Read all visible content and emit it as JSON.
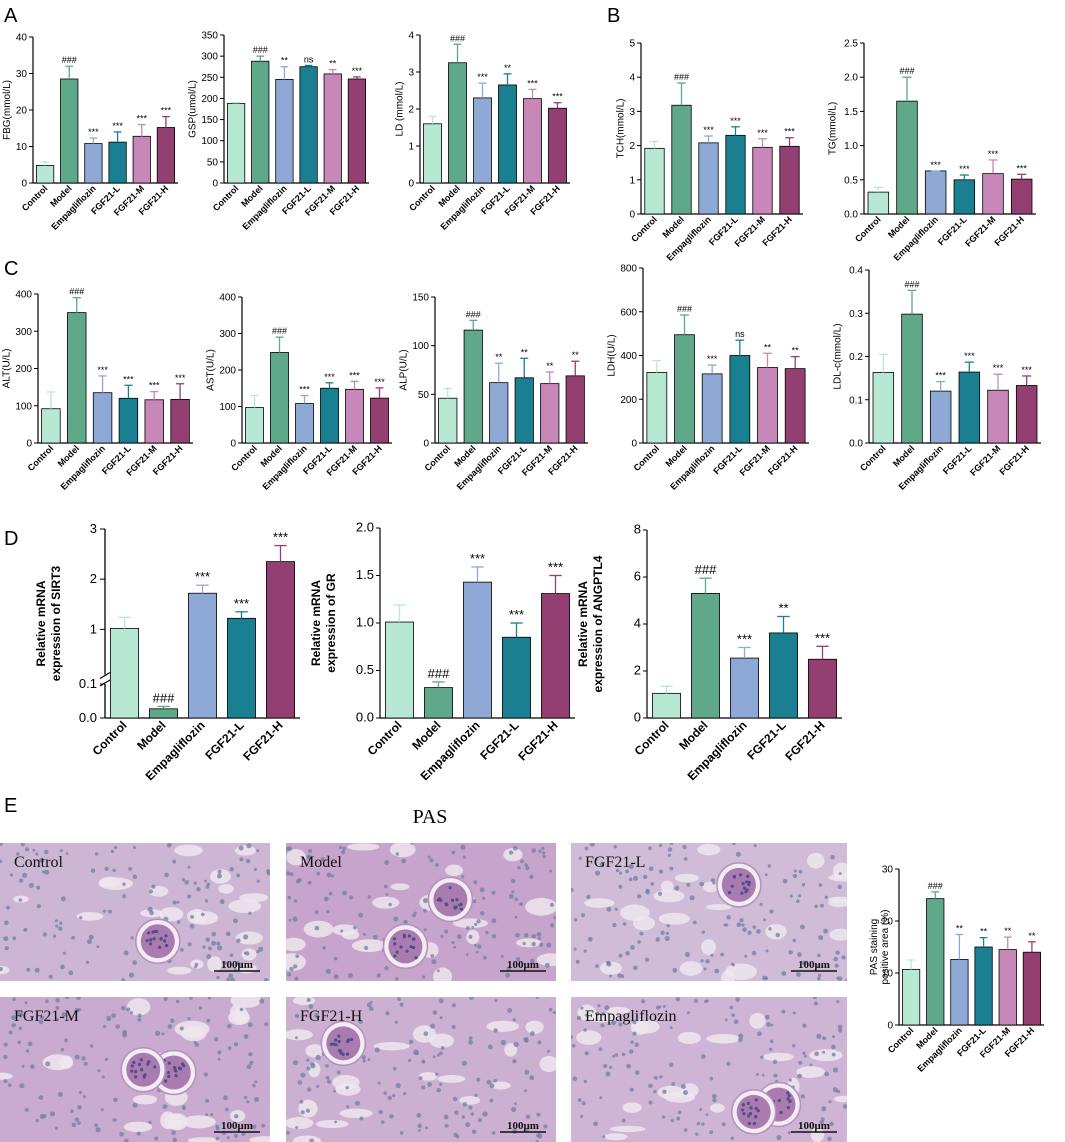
{
  "panel_labels": [
    "A",
    "B",
    "C",
    "D",
    "E"
  ],
  "colors": [
    "#b6e8d4",
    "#5fa889",
    "#8fa9d6",
    "#1b7f92",
    "#c887b9",
    "#943f72"
  ],
  "histology": {
    "title": "PAS",
    "scale_bar": "100μm",
    "images": [
      {
        "label": "Control",
        "tint": "#cdb6d3"
      },
      {
        "label": "Model",
        "tint": "#c7a4cb"
      },
      {
        "label": "FGF21-L",
        "tint": "#d1bcd8"
      },
      {
        "label": "FGF21-M",
        "tint": "#c8abcf"
      },
      {
        "label": "FGF21-H",
        "tint": "#cbb0d1"
      },
      {
        "label": "Empagliflozin",
        "tint": "#cfb5d5"
      }
    ]
  },
  "chart_data": [
    {
      "id": "FBG",
      "panel": "A",
      "type": "bar",
      "ylabel": "FBG(mmol/L)",
      "categories": [
        "Control",
        "Model",
        "Empagliflozin",
        "FGF21-L",
        "FGF21-M",
        "FGF21-H"
      ],
      "values": [
        4.8,
        28.5,
        10.8,
        11.2,
        12.8,
        15.2
      ],
      "errors": [
        1.0,
        3.5,
        1.5,
        2.8,
        3.2,
        3.0
      ],
      "sig": [
        "",
        "###",
        "***",
        "***",
        "***",
        "***"
      ],
      "ylim": [
        0,
        40
      ],
      "ticks": [
        0,
        10,
        20,
        30,
        40
      ]
    },
    {
      "id": "GSP",
      "panel": "A",
      "type": "bar",
      "ylabel": "GSP(umol/L)",
      "categories": [
        "Control",
        "Model",
        "Empagliflozin",
        "FGF21-L",
        "FGF21-M",
        "FGF21-H"
      ],
      "values": [
        188,
        288,
        245,
        275,
        258,
        246
      ],
      "errors": [
        2,
        12,
        30,
        3,
        10,
        5
      ],
      "sig": [
        "",
        "###",
        "**",
        "ns",
        "**",
        "***"
      ],
      "ylim": [
        0,
        350
      ],
      "ticks": [
        0,
        50,
        100,
        150,
        200,
        250,
        300,
        350
      ]
    },
    {
      "id": "LD",
      "panel": "A",
      "type": "bar",
      "ylabel": "LD (mmol/L)",
      "categories": [
        "Control",
        "Model",
        "Empagliflozin",
        "FGF21-L",
        "FGF21-M",
        "FGF21-H"
      ],
      "values": [
        1.6,
        3.25,
        2.3,
        2.65,
        2.28,
        2.02
      ],
      "errors": [
        0.2,
        0.5,
        0.4,
        0.3,
        0.25,
        0.15
      ],
      "sig": [
        "",
        "###",
        "***",
        "**",
        "***",
        "***"
      ],
      "ylim": [
        0,
        4
      ],
      "ticks": [
        0,
        1,
        2,
        3,
        4
      ]
    },
    {
      "id": "TCH",
      "panel": "B",
      "type": "bar",
      "ylabel": "TCH(mmol/L)",
      "categories": [
        "Control",
        "Model",
        "Empagliflozin",
        "FGF21-L",
        "FGF21-M",
        "FGF21-H"
      ],
      "values": [
        1.92,
        3.18,
        2.08,
        2.3,
        1.95,
        1.98
      ],
      "errors": [
        0.2,
        0.65,
        0.2,
        0.25,
        0.25,
        0.25
      ],
      "sig": [
        "",
        "###",
        "***",
        "***",
        "***",
        "***"
      ],
      "ylim": [
        0,
        5
      ],
      "ticks": [
        0,
        1,
        2,
        3,
        4,
        5
      ]
    },
    {
      "id": "TG",
      "panel": "B",
      "type": "bar",
      "ylabel": "TG(mmol/L)",
      "categories": [
        "Control",
        "Model",
        "Empagliflozin",
        "FGF21-L",
        "FGF21-M",
        "FGF21-H"
      ],
      "values": [
        0.32,
        1.65,
        0.63,
        0.5,
        0.59,
        0.51
      ],
      "errors": [
        0.07,
        0.35,
        0.0,
        0.07,
        0.2,
        0.07
      ],
      "sig": [
        "",
        "###",
        "***",
        "***",
        "***",
        "***"
      ],
      "ylim": [
        0,
        2.5
      ],
      "ticks": [
        0.0,
        0.5,
        1.0,
        1.5,
        2.0,
        2.5
      ]
    },
    {
      "id": "ALT",
      "panel": "C",
      "type": "bar",
      "ylabel": "ALT(U/L)",
      "categories": [
        "Control",
        "Model",
        "Empagliflozin",
        "FGF21-L",
        "FGF21-M",
        "FGF21-H"
      ],
      "values": [
        92,
        350,
        135,
        120,
        116,
        117
      ],
      "errors": [
        45,
        40,
        45,
        35,
        22,
        42
      ],
      "sig": [
        "",
        "###",
        "***",
        "***",
        "***",
        "***"
      ],
      "ylim": [
        0,
        400
      ],
      "ticks": [
        0,
        100,
        200,
        300,
        400
      ]
    },
    {
      "id": "AST",
      "panel": "C",
      "type": "bar",
      "ylabel": "AST(U/L)",
      "categories": [
        "Control",
        "Model",
        "Empagliflozin",
        "FGF21-L",
        "FGF21-M",
        "FGF21-H"
      ],
      "values": [
        97,
        248,
        108,
        150,
        147,
        123
      ],
      "errors": [
        33,
        42,
        22,
        15,
        22,
        28
      ],
      "sig": [
        "",
        "###",
        "***",
        "***",
        "***",
        "***"
      ],
      "ylim": [
        0,
        400
      ],
      "ticks": [
        0,
        100,
        200,
        300,
        400
      ]
    },
    {
      "id": "ALP",
      "panel": "C",
      "type": "bar",
      "ylabel": "ALP(U/L)",
      "categories": [
        "Control",
        "Model",
        "Empagliflozin",
        "FGF21-L",
        "FGF21-M",
        "FGF21-H"
      ],
      "values": [
        46,
        116,
        62,
        67,
        61,
        69
      ],
      "errors": [
        10,
        10,
        20,
        20,
        12,
        15
      ],
      "sig": [
        "",
        "###",
        "**",
        "**",
        "**",
        "**"
      ],
      "ylim": [
        0,
        150
      ],
      "ticks": [
        0,
        50,
        100,
        150
      ]
    },
    {
      "id": "LDH",
      "panel": "C",
      "type": "bar",
      "ylabel": "LDH(U/L)",
      "categories": [
        "Control",
        "Model",
        "Empagliflozin",
        "FGF21-L",
        "FGF21-M",
        "FGF21-H"
      ],
      "values": [
        322,
        495,
        316,
        400,
        345,
        340
      ],
      "errors": [
        55,
        90,
        40,
        70,
        65,
        55
      ],
      "sig": [
        "",
        "###",
        "***",
        "ns",
        "**",
        "**"
      ],
      "ylim": [
        0,
        800
      ],
      "ticks": [
        0,
        200,
        400,
        600,
        800
      ]
    },
    {
      "id": "LDLc",
      "panel": "C",
      "type": "bar",
      "ylabel": "LDL-c(mmol/L)",
      "categories": [
        "Control",
        "Model",
        "Empagliflozin",
        "FGF21-L",
        "FGF21-M",
        "FGF21-H"
      ],
      "values": [
        0.163,
        0.298,
        0.12,
        0.164,
        0.122,
        0.133
      ],
      "errors": [
        0.042,
        0.055,
        0.022,
        0.023,
        0.037,
        0.022
      ],
      "sig": [
        "",
        "###",
        "***",
        "***",
        "***",
        "***"
      ],
      "ylim": [
        0,
        0.4
      ],
      "ticks": [
        0.0,
        0.1,
        0.2,
        0.3,
        0.4
      ]
    },
    {
      "id": "SIRT3",
      "panel": "D",
      "type": "bar",
      "ylabel": "Relative mRNA expression of SIRT3",
      "broken_axis": {
        "lower": [
          0,
          0.1
        ],
        "upper": [
          0.1,
          3
        ]
      },
      "categories": [
        "Control",
        "Model",
        "Empagliflozin",
        "FGF21-L",
        "FGF21-H"
      ],
      "values": [
        1.02,
        0.027,
        1.72,
        1.22,
        2.35
      ],
      "errors": [
        0.22,
        0.007,
        0.16,
        0.13,
        0.32
      ],
      "sig": [
        "",
        "###",
        "***",
        "***",
        "***"
      ],
      "ticks_lower": [
        0.0,
        0.1
      ],
      "ticks_upper": [
        1,
        2,
        3
      ]
    },
    {
      "id": "GR",
      "panel": "D",
      "type": "bar",
      "ylabel": "Relative mRNA expression of GR",
      "categories": [
        "Control",
        "Model",
        "Empagliflozin",
        "FGF21-L",
        "FGF21-H"
      ],
      "values": [
        1.01,
        0.32,
        1.43,
        0.85,
        1.31
      ],
      "errors": [
        0.18,
        0.06,
        0.16,
        0.15,
        0.19
      ],
      "sig": [
        "",
        "###",
        "***",
        "***",
        "***"
      ],
      "ylim": [
        0,
        2.0
      ],
      "ticks": [
        0.0,
        0.5,
        1.0,
        1.5,
        2.0
      ]
    },
    {
      "id": "ANGPTL4",
      "panel": "D",
      "type": "bar",
      "ylabel": "Relative mRNA expression of ANGPTL4",
      "categories": [
        "Control",
        "Model",
        "Empagliflozin",
        "FGF21-L",
        "FGF21-H"
      ],
      "values": [
        1.05,
        5.3,
        2.55,
        3.62,
        2.5
      ],
      "errors": [
        0.3,
        0.65,
        0.45,
        0.7,
        0.55
      ],
      "sig": [
        "",
        "###",
        "***",
        "**",
        "***"
      ],
      "ylim": [
        0,
        8
      ],
      "ticks": [
        0,
        2,
        4,
        6,
        8
      ]
    },
    {
      "id": "PAS",
      "panel": "E",
      "type": "bar",
      "ylabel": "PAS staining positive area (%)",
      "categories": [
        "Control",
        "Model",
        "Empagliflozin",
        "FGF21-L",
        "FGF21-M",
        "FGF21-H"
      ],
      "values": [
        10.7,
        24.3,
        12.6,
        15.0,
        14.5,
        14.0
      ],
      "errors": [
        1.8,
        1.3,
        4.8,
        1.8,
        2.4,
        2.0
      ],
      "sig": [
        "",
        "###",
        "**",
        "**",
        "**",
        "**"
      ],
      "ylim": [
        0,
        30
      ],
      "ticks": [
        0,
        10,
        20,
        30
      ]
    }
  ]
}
